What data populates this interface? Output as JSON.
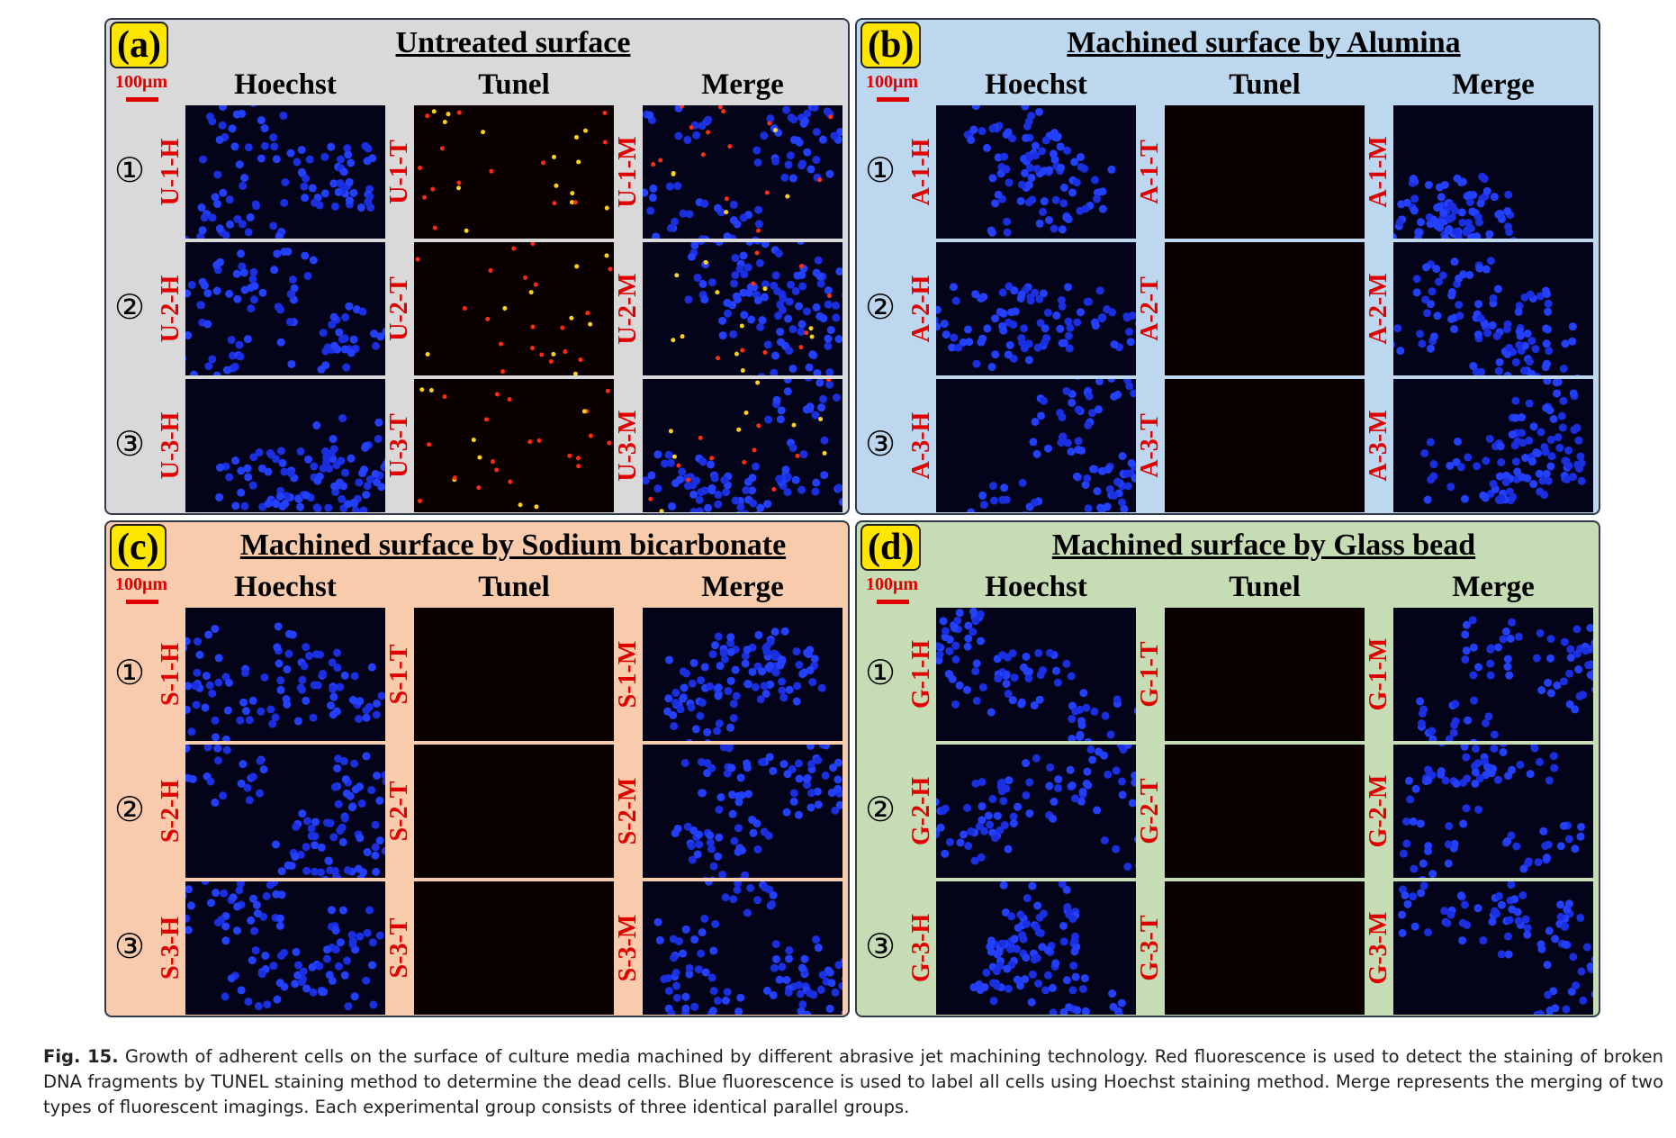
{
  "panels": [
    {
      "letter": "(a)",
      "title": "Untreated surface",
      "scale_label": "100μm",
      "columns": [
        "Hoechst",
        "Tunel",
        "Merge"
      ],
      "rows": [
        {
          "marker": "①",
          "labels": [
            "U-1-H",
            "U-1-T",
            "U-1-M"
          ]
        },
        {
          "marker": "②",
          "labels": [
            "U-2-H",
            "U-2-T",
            "U-2-M"
          ]
        },
        {
          "marker": "③",
          "labels": [
            "U-3-H",
            "U-3-T",
            "U-3-M"
          ]
        }
      ]
    },
    {
      "letter": "(b)",
      "title": "Machined surface by Alumina",
      "scale_label": "100μm",
      "columns": [
        "Hoechst",
        "Tunel",
        "Merge"
      ],
      "rows": [
        {
          "marker": "①",
          "labels": [
            "A-1-H",
            "A-1-T",
            "A-1-M"
          ]
        },
        {
          "marker": "②",
          "labels": [
            "A-2-H",
            "A-2-T",
            "A-2-M"
          ]
        },
        {
          "marker": "③",
          "labels": [
            "A-3-H",
            "A-3-T",
            "A-3-M"
          ]
        }
      ]
    },
    {
      "letter": "(c)",
      "title": "Machined surface by Sodium bicarbonate",
      "scale_label": "100μm",
      "columns": [
        "Hoechst",
        "Tunel",
        "Merge"
      ],
      "rows": [
        {
          "marker": "①",
          "labels": [
            "S-1-H",
            "S-1-T",
            "S-1-M"
          ]
        },
        {
          "marker": "②",
          "labels": [
            "S-2-H",
            "S-2-T",
            "S-2-M"
          ]
        },
        {
          "marker": "③",
          "labels": [
            "S-3-H",
            "S-3-T",
            "S-3-M"
          ]
        }
      ]
    },
    {
      "letter": "(d)",
      "title": "Machined surface by Glass bead",
      "scale_label": "100μm",
      "columns": [
        "Hoechst",
        "Tunel",
        "Merge"
      ],
      "rows": [
        {
          "marker": "①",
          "labels": [
            "G-1-H",
            "G-1-T",
            "G-1-M"
          ]
        },
        {
          "marker": "②",
          "labels": [
            "G-2-H",
            "G-2-T",
            "G-2-M"
          ]
        },
        {
          "marker": "③",
          "labels": [
            "G-3-H",
            "G-3-T",
            "G-3-M"
          ]
        }
      ]
    }
  ],
  "caption": {
    "label": "Fig. 15.",
    "text": "Growth of adherent cells on the surface of culture media machined by different abrasive jet machining technology. Red fluorescence is used to detect the staining of broken DNA fragments by TUNEL staining method to determine the dead cells. Blue fluorescence is used to label all cells using Hoechst staining method. Merge represents the merging of two types of fluorescent imagings. Each experimental group consists of three identical parallel groups."
  }
}
